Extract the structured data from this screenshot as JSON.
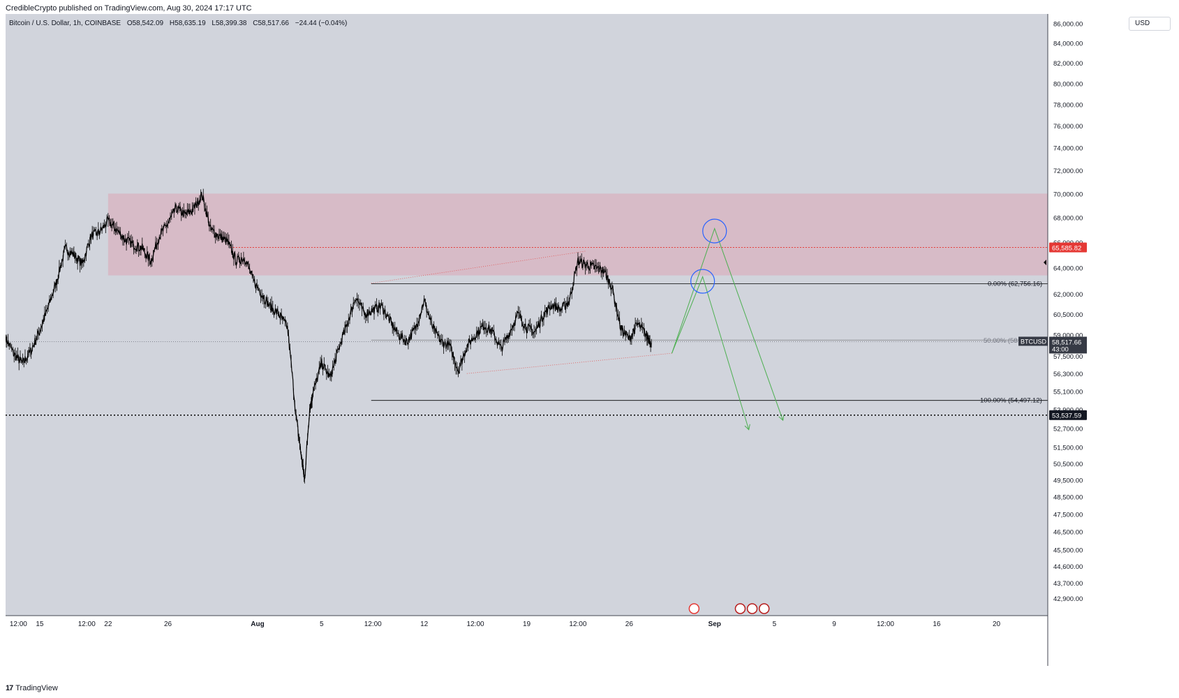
{
  "header": {
    "published": "CredibleCrypto published on TradingView.com, Aug 30, 2024 17:17 UTC"
  },
  "legend": {
    "symbol": "Bitcoin / U.S. Dollar, 1h, COINBASE",
    "open_label": "O",
    "open": "58,542.09",
    "high_label": "H",
    "high": "58,635.19",
    "low_label": "L",
    "low": "58,399.38",
    "close_label": "C",
    "close": "58,517.66",
    "change": "−24.44 (−0.04%)"
  },
  "currency": "USD",
  "footer": {
    "brand": "TradingView",
    "brand_mark": "17"
  },
  "colors": {
    "background": "#d1d4dc",
    "candles": "#000000",
    "zone": "#d8b3c0",
    "red_line": "#e53935",
    "green_path": "#4caf50",
    "circle": "#2962ff"
  },
  "chart_data": {
    "type": "candlestick",
    "title": "Bitcoin / U.S. Dollar, 1h, COINBASE",
    "y_scale": "log",
    "ylim": [
      42000,
      87000
    ],
    "y_ticks": [
      {
        "v": 86000,
        "label": "86,000.00"
      },
      {
        "v": 84000,
        "label": "84,000.00"
      },
      {
        "v": 82000,
        "label": "82,000.00"
      },
      {
        "v": 80000,
        "label": "80,000.00"
      },
      {
        "v": 78000,
        "label": "78,000.00"
      },
      {
        "v": 76000,
        "label": "76,000.00"
      },
      {
        "v": 74000,
        "label": "74,000.00"
      },
      {
        "v": 72000,
        "label": "72,000.00"
      },
      {
        "v": 70000,
        "label": "70,000.00"
      },
      {
        "v": 68000,
        "label": "68,000.00"
      },
      {
        "v": 66000,
        "label": "66,000.00"
      },
      {
        "v": 64000,
        "label": "64,000.00"
      },
      {
        "v": 62000,
        "label": "62,000.00"
      },
      {
        "v": 60500,
        "label": "60,500.00"
      },
      {
        "v": 59000,
        "label": "59,000.00"
      },
      {
        "v": 57500,
        "label": "57,500.00"
      },
      {
        "v": 56300,
        "label": "56,300.00"
      },
      {
        "v": 55100,
        "label": "55,100.00"
      },
      {
        "v": 53900,
        "label": "53,900.00"
      },
      {
        "v": 52700,
        "label": "52,700.00"
      },
      {
        "v": 51500,
        "label": "51,500.00"
      },
      {
        "v": 50500,
        "label": "50,500.00"
      },
      {
        "v": 49500,
        "label": "49,500.00"
      },
      {
        "v": 48500,
        "label": "48,500.00"
      },
      {
        "v": 47500,
        "label": "47,500.00"
      },
      {
        "v": 46500,
        "label": "46,500.00"
      },
      {
        "v": 45500,
        "label": "45,500.00"
      },
      {
        "v": 44600,
        "label": "44,600.00"
      },
      {
        "v": 43700,
        "label": "43,700.00"
      },
      {
        "v": 42900,
        "label": "42,900.00"
      }
    ],
    "x_ticks": [
      {
        "t": 0.75,
        "label": "12:00",
        "bold": false
      },
      {
        "t": 2.0,
        "label": "15",
        "bold": false
      },
      {
        "t": 4.75,
        "label": "12:00",
        "bold": false
      },
      {
        "t": 6.0,
        "label": "22",
        "bold": false
      },
      {
        "t": 9.5,
        "label": "26",
        "bold": false
      },
      {
        "t": 14.75,
        "label": "Aug",
        "bold": true
      },
      {
        "t": 18.5,
        "label": "5",
        "bold": false
      },
      {
        "t": 21.5,
        "label": "12:00",
        "bold": false
      },
      {
        "t": 24.5,
        "label": "12",
        "bold": false
      },
      {
        "t": 27.5,
        "label": "12:00",
        "bold": false
      },
      {
        "t": 30.5,
        "label": "19",
        "bold": false
      },
      {
        "t": 33.5,
        "label": "12:00",
        "bold": false
      },
      {
        "t": 36.5,
        "label": "26",
        "bold": false
      },
      {
        "t": 41.5,
        "label": "Sep",
        "bold": true
      },
      {
        "t": 45.0,
        "label": "5",
        "bold": false
      },
      {
        "t": 48.5,
        "label": "9",
        "bold": false
      },
      {
        "t": 51.5,
        "label": "12:00",
        "bold": false
      },
      {
        "t": 54.5,
        "label": "16",
        "bold": false
      },
      {
        "t": 58.0,
        "label": "20",
        "bold": false
      }
    ],
    "x_unit": "days since Jul 14, 2024 00:00 UTC (approx.)",
    "price_path": [
      [
        0.0,
        58800
      ],
      [
        0.5,
        57600
      ],
      [
        1.0,
        57000
      ],
      [
        1.5,
        57900
      ],
      [
        2.0,
        59300
      ],
      [
        2.5,
        61000
      ],
      [
        3.0,
        63000
      ],
      [
        3.5,
        65500
      ],
      [
        4.0,
        65000
      ],
      [
        4.5,
        64300
      ],
      [
        5.0,
        66500
      ],
      [
        5.5,
        66800
      ],
      [
        6.0,
        67700
      ],
      [
        6.5,
        67000
      ],
      [
        7.0,
        66200
      ],
      [
        7.5,
        65800
      ],
      [
        8.0,
        65500
      ],
      [
        8.5,
        64500
      ],
      [
        9.0,
        66500
      ],
      [
        9.5,
        67500
      ],
      [
        10.0,
        68800
      ],
      [
        10.5,
        68200
      ],
      [
        11.0,
        68700
      ],
      [
        11.5,
        69900
      ],
      [
        12.0,
        67000
      ],
      [
        12.5,
        66500
      ],
      [
        13.0,
        66000
      ],
      [
        13.5,
        64500
      ],
      [
        14.0,
        64800
      ],
      [
        14.5,
        63000
      ],
      [
        15.0,
        62000
      ],
      [
        15.5,
        61000
      ],
      [
        16.0,
        60500
      ],
      [
        16.5,
        59500
      ],
      [
        17.0,
        53500
      ],
      [
        17.3,
        51000
      ],
      [
        17.5,
        49500
      ],
      [
        17.8,
        54000
      ],
      [
        18.0,
        55000
      ],
      [
        18.5,
        57000
      ],
      [
        19.0,
        56000
      ],
      [
        19.5,
        58000
      ],
      [
        20.0,
        59800
      ],
      [
        20.5,
        61800
      ],
      [
        21.0,
        60500
      ],
      [
        21.5,
        60800
      ],
      [
        22.0,
        61100
      ],
      [
        22.5,
        60000
      ],
      [
        23.0,
        59000
      ],
      [
        23.5,
        58500
      ],
      [
        24.0,
        59500
      ],
      [
        24.5,
        61500
      ],
      [
        25.0,
        59500
      ],
      [
        25.5,
        58500
      ],
      [
        26.0,
        58200
      ],
      [
        26.5,
        56500
      ],
      [
        27.0,
        58200
      ],
      [
        27.5,
        59000
      ],
      [
        28.0,
        59700
      ],
      [
        28.5,
        59200
      ],
      [
        29.0,
        58000
      ],
      [
        29.5,
        59200
      ],
      [
        30.0,
        60500
      ],
      [
        30.5,
        59500
      ],
      [
        31.0,
        59200
      ],
      [
        31.5,
        60500
      ],
      [
        32.0,
        61200
      ],
      [
        32.5,
        60800
      ],
      [
        33.0,
        61500
      ],
      [
        33.5,
        64500
      ],
      [
        34.0,
        64200
      ],
      [
        34.5,
        64000
      ],
      [
        35.0,
        63800
      ],
      [
        35.5,
        62500
      ],
      [
        36.0,
        59500
      ],
      [
        36.5,
        58700
      ],
      [
        37.0,
        59800
      ],
      [
        37.5,
        59000
      ],
      [
        37.8,
        58400
      ]
    ],
    "annotations": {
      "resistance_zone": {
        "from_t": 6.0,
        "low": 63400,
        "high": 70000
      },
      "dotted_red_line": {
        "price": 65585.82,
        "label": "65,585.82"
      },
      "dashed_black_line": {
        "price": 53537.59,
        "label": "53,537.59"
      },
      "fib_0": {
        "price": 62756.16,
        "label": "0.00% (62,756.16)"
      },
      "fib_50": {
        "price": 58626.64,
        "label": "50.00% (58"
      },
      "fib_100": {
        "price": 54497.12,
        "label": "100.00% (54,497.12)"
      },
      "fib_from_t": 21.4,
      "last_price": {
        "price": 58517.66,
        "label": "58,517.66",
        "symbol": "BTCUSD",
        "countdown": "43:00"
      },
      "channel_top": [
        [
          21.4,
          62800
        ],
        [
          34.0,
          65300
        ]
      ],
      "channel_bottom": [
        [
          27.0,
          56300
        ],
        [
          39.0,
          57700
        ]
      ],
      "projection_1": [
        [
          39.0,
          57700
        ],
        [
          40.8,
          63300
        ],
        [
          43.5,
          52600
        ]
      ],
      "projection_2": [
        [
          39.0,
          57700
        ],
        [
          41.5,
          67100
        ],
        [
          45.5,
          53200
        ]
      ],
      "circles": [
        {
          "t": 40.8,
          "price": 62950
        },
        {
          "t": 41.5,
          "price": 66900
        }
      ],
      "event_icons_t": [
        40.3,
        43.0,
        43.7,
        44.4
      ]
    }
  }
}
